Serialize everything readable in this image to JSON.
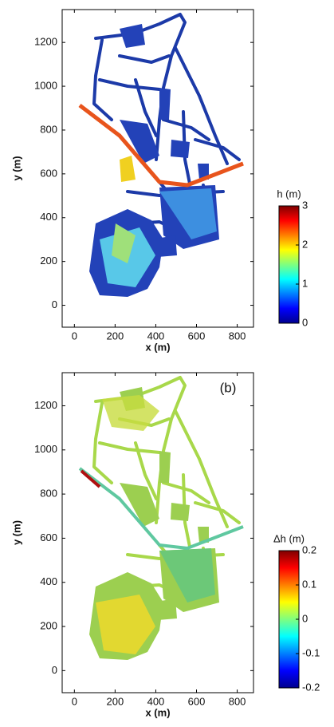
{
  "chart_data": [
    {
      "type": "map",
      "xlabel": "x (m)",
      "ylabel": "y (m)",
      "xlim": [
        -60,
        880
      ],
      "xticks": [
        0,
        200,
        400,
        600,
        800
      ],
      "ylim": [
        -100,
        1350
      ],
      "yticks": [
        0,
        200,
        400,
        600,
        800,
        1000,
        1200
      ],
      "colorbar_label": "h (m)",
      "clim": [
        0,
        3
      ],
      "cticks": [
        0,
        1,
        2,
        3
      ],
      "colormap": "jet"
    },
    {
      "type": "map",
      "xlabel": "x (m)",
      "ylabel": "y (m)",
      "annotation": "(b)",
      "xlim": [
        -60,
        880
      ],
      "xticks": [
        0,
        200,
        400,
        600,
        800
      ],
      "ylim": [
        -100,
        1350
      ],
      "yticks": [
        0,
        200,
        400,
        600,
        800,
        1000,
        1200
      ],
      "colorbar_label": "Δh (m)",
      "clim": [
        -0.2,
        0.2
      ],
      "cticks": [
        -0.2,
        -0.1,
        0,
        0.1,
        0.2
      ],
      "colormap": "jet"
    }
  ]
}
